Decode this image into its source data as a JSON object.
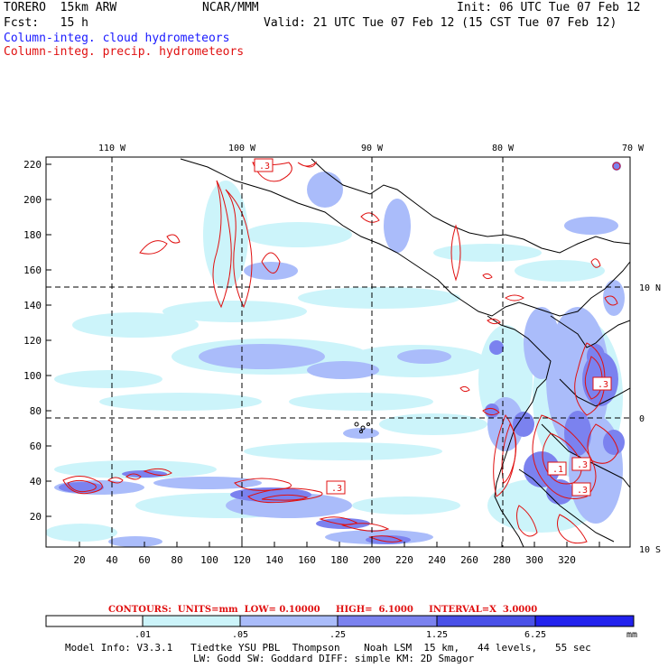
{
  "header": {
    "model": "TORERO  15km ARW",
    "center": "NCAR/MMM",
    "init": "Init: 06 UTC Tue 07 Feb 12",
    "fcst": "Fcst:   15 h",
    "valid": "Valid: 21 UTC Tue 07 Feb 12 (15 CST Tue 07 Feb 12)",
    "field1": "Column-integ. cloud hydrometeors",
    "field2": "Column-integ. precip. hydrometeors"
  },
  "map": {
    "lon_labels": [
      "110 W",
      "100 W",
      "90 W",
      "80 W",
      "70 W"
    ],
    "lat_labels": [
      "10 N",
      "0",
      "10 S"
    ],
    "y_ticks": [
      "220",
      "200",
      "180",
      "160",
      "140",
      "120",
      "100",
      "80",
      "60",
      "40",
      "20"
    ],
    "x_ticks": [
      "20",
      "40",
      "60",
      "80",
      "100",
      "120",
      "140",
      "160",
      "180",
      "200",
      "220",
      "240",
      "260",
      "280",
      "300",
      "320"
    ],
    "contour_box_label": ".3",
    "contour_box_label_2": ".1"
  },
  "contours_info": {
    "label": "CONTOURS:  UNITS=mm  LOW= 0.10000     HIGH=  6.1000     INTERVAL=X  3.0000"
  },
  "colorbar": {
    "levels": [
      ".01",
      ".05",
      ".25",
      "1.25",
      "6.25"
    ],
    "unit": "mm",
    "colors": [
      "#ffffff",
      "#ccf4fa",
      "#aabcfa",
      "#7b82ef",
      "#4a51e8",
      "#2222ee"
    ]
  },
  "footer": {
    "line1": "Model Info: V3.3.1   Tiedtke YSU PBL  Thompson    Noah LSM  15 km,   44 levels,   55 sec",
    "line2": "LW: Godd SW: Goddard DIFF: simple KM: 2D Smagor"
  }
}
